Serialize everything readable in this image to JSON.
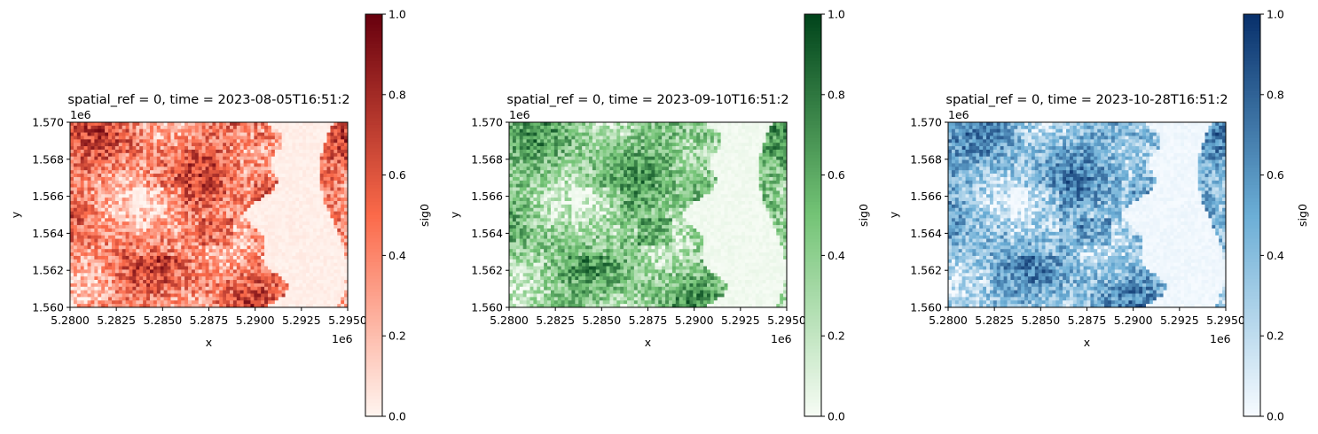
{
  "chart_data": [
    {
      "type": "heatmap",
      "title": "spatial_ref = 0, time = 2023-08-05T16:51:2",
      "xlabel": "x",
      "ylabel": "y",
      "x_offset_label": "1e6",
      "y_offset_label": "1e6",
      "xlim": [
        5.28,
        5.295
      ],
      "ylim": [
        1.56,
        1.57
      ],
      "x_ticks": [
        "5.2800",
        "5.2825",
        "5.2850",
        "5.2875",
        "5.2900",
        "5.2925",
        "5.2950"
      ],
      "y_ticks": [
        "1.560",
        "1.562",
        "1.564",
        "1.566",
        "1.568",
        "1.570"
      ],
      "colormap": "Reds",
      "colors": {
        "low": "#fff5f0",
        "mid": "#fb6a4a",
        "high": "#67000d"
      },
      "colorbar": {
        "label": "sig0",
        "range": [
          0.0,
          1.0
        ],
        "ticks": [
          "0.0",
          "0.2",
          "0.4",
          "0.6",
          "0.8",
          "1.0"
        ]
      }
    },
    {
      "type": "heatmap",
      "title": "spatial_ref = 0, time = 2023-09-10T16:51:2",
      "xlabel": "x",
      "ylabel": "y",
      "x_offset_label": "1e6",
      "y_offset_label": "1e6",
      "xlim": [
        5.28,
        5.295
      ],
      "ylim": [
        1.56,
        1.57
      ],
      "x_ticks": [
        "5.2800",
        "5.2825",
        "5.2850",
        "5.2875",
        "5.2900",
        "5.2925",
        "5.2950"
      ],
      "y_ticks": [
        "1.560",
        "1.562",
        "1.564",
        "1.566",
        "1.568",
        "1.570"
      ],
      "colormap": "Greens",
      "colors": {
        "low": "#f7fcf5",
        "mid": "#74c476",
        "high": "#00441b"
      },
      "colorbar": {
        "label": "sig0",
        "range": [
          0.0,
          1.0
        ],
        "ticks": [
          "0.0",
          "0.2",
          "0.4",
          "0.6",
          "0.8",
          "1.0"
        ]
      }
    },
    {
      "type": "heatmap",
      "title": "spatial_ref = 0, time = 2023-10-28T16:51:2",
      "xlabel": "x",
      "ylabel": "y",
      "x_offset_label": "1e6",
      "y_offset_label": "1e6",
      "xlim": [
        5.28,
        5.295
      ],
      "ylim": [
        1.56,
        1.57
      ],
      "x_ticks": [
        "5.2800",
        "5.2825",
        "5.2850",
        "5.2875",
        "5.2900",
        "5.2925",
        "5.2950"
      ],
      "y_ticks": [
        "1.560",
        "1.562",
        "1.564",
        "1.566",
        "1.568",
        "1.570"
      ],
      "colormap": "Blues",
      "colors": {
        "low": "#f7fbff",
        "mid": "#6baed6",
        "high": "#08306b"
      },
      "colorbar": {
        "label": "sig0",
        "range": [
          0.0,
          1.0
        ],
        "ticks": [
          "0.0",
          "0.2",
          "0.4",
          "0.6",
          "0.8",
          "1.0"
        ]
      }
    }
  ]
}
